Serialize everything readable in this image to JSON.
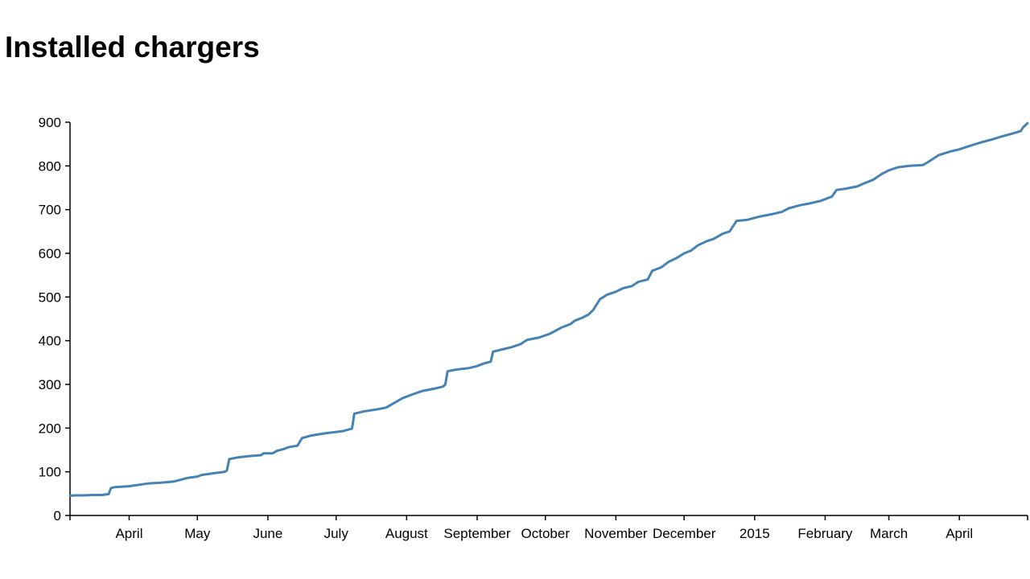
{
  "page_title": "Installed chargers",
  "chart_data": {
    "type": "line",
    "title": "Installed chargers",
    "xlabel": "",
    "ylabel": "",
    "ylim": [
      0,
      900
    ],
    "yticks": [
      0,
      100,
      200,
      300,
      400,
      500,
      600,
      700,
      800,
      900
    ],
    "xlim": [
      "2014-03-06",
      "2015-05-01"
    ],
    "xticks": [
      {
        "date": "2014-04-01",
        "label": "April"
      },
      {
        "date": "2014-05-01",
        "label": "May"
      },
      {
        "date": "2014-06-01",
        "label": "June"
      },
      {
        "date": "2014-07-01",
        "label": "July"
      },
      {
        "date": "2014-08-01",
        "label": "August"
      },
      {
        "date": "2014-09-01",
        "label": "September"
      },
      {
        "date": "2014-10-01",
        "label": "October"
      },
      {
        "date": "2014-11-01",
        "label": "November"
      },
      {
        "date": "2014-12-01",
        "label": "December"
      },
      {
        "date": "2015-01-01",
        "label": "2015"
      },
      {
        "date": "2015-02-01",
        "label": "February"
      },
      {
        "date": "2015-03-01",
        "label": "March"
      },
      {
        "date": "2015-04-01",
        "label": "April"
      }
    ],
    "grid": false,
    "legend": "none",
    "line_color": "#4682b4",
    "series": [
      {
        "points": [
          [
            "2014-03-06",
            45
          ],
          [
            "2014-03-08",
            46
          ],
          [
            "2014-03-12",
            46
          ],
          [
            "2014-03-16",
            47
          ],
          [
            "2014-03-20",
            47
          ],
          [
            "2014-03-23",
            49
          ],
          [
            "2014-03-24",
            63
          ],
          [
            "2014-03-26",
            65
          ],
          [
            "2014-04-01",
            67
          ],
          [
            "2014-04-05",
            70
          ],
          [
            "2014-04-09",
            73
          ],
          [
            "2014-04-15",
            75
          ],
          [
            "2014-04-21",
            78
          ],
          [
            "2014-04-26",
            85
          ],
          [
            "2014-04-28",
            87
          ],
          [
            "2014-05-01",
            89
          ],
          [
            "2014-05-03",
            93
          ],
          [
            "2014-05-06",
            95
          ],
          [
            "2014-05-10",
            98
          ],
          [
            "2014-05-13",
            100
          ],
          [
            "2014-05-14",
            103
          ],
          [
            "2014-05-15",
            129
          ],
          [
            "2014-05-19",
            133
          ],
          [
            "2014-05-24",
            136
          ],
          [
            "2014-05-29",
            138
          ],
          [
            "2014-05-30",
            142
          ],
          [
            "2014-06-03",
            142
          ],
          [
            "2014-06-05",
            148
          ],
          [
            "2014-06-08",
            152
          ],
          [
            "2014-06-10",
            156
          ],
          [
            "2014-06-14",
            160
          ],
          [
            "2014-06-16",
            177
          ],
          [
            "2014-06-20",
            183
          ],
          [
            "2014-06-26",
            188
          ],
          [
            "2014-07-04",
            193
          ],
          [
            "2014-07-08",
            199
          ],
          [
            "2014-07-09",
            233
          ],
          [
            "2014-07-13",
            238
          ],
          [
            "2014-07-19",
            243
          ],
          [
            "2014-07-23",
            247
          ],
          [
            "2014-07-30",
            268
          ],
          [
            "2014-08-03",
            276
          ],
          [
            "2014-08-08",
            285
          ],
          [
            "2014-08-13",
            290
          ],
          [
            "2014-08-17",
            295
          ],
          [
            "2014-08-18",
            300
          ],
          [
            "2014-08-19",
            330
          ],
          [
            "2014-08-23",
            334
          ],
          [
            "2014-08-28",
            337
          ],
          [
            "2014-09-01",
            342
          ],
          [
            "2014-09-04",
            348
          ],
          [
            "2014-09-07",
            352
          ],
          [
            "2014-09-08",
            375
          ],
          [
            "2014-09-12",
            380
          ],
          [
            "2014-09-16",
            385
          ],
          [
            "2014-09-20",
            392
          ],
          [
            "2014-09-23",
            402
          ],
          [
            "2014-09-28",
            407
          ],
          [
            "2014-10-03",
            416
          ],
          [
            "2014-10-08",
            430
          ],
          [
            "2014-10-12",
            438
          ],
          [
            "2014-10-14",
            446
          ],
          [
            "2014-10-17",
            452
          ],
          [
            "2014-10-20",
            460
          ],
          [
            "2014-10-22",
            470
          ],
          [
            "2014-10-25",
            495
          ],
          [
            "2014-10-28",
            505
          ],
          [
            "2014-11-01",
            512
          ],
          [
            "2014-11-04",
            520
          ],
          [
            "2014-11-08",
            525
          ],
          [
            "2014-11-11",
            535
          ],
          [
            "2014-11-15",
            540
          ],
          [
            "2014-11-17",
            560
          ],
          [
            "2014-11-21",
            568
          ],
          [
            "2014-11-24",
            580
          ],
          [
            "2014-11-28",
            590
          ],
          [
            "2014-12-01",
            600
          ],
          [
            "2014-12-04",
            606
          ],
          [
            "2014-12-07",
            618
          ],
          [
            "2014-12-11",
            628
          ],
          [
            "2014-12-14",
            633
          ],
          [
            "2014-12-18",
            645
          ],
          [
            "2014-12-21",
            650
          ],
          [
            "2014-12-24",
            674
          ],
          [
            "2014-12-29",
            677
          ],
          [
            "2015-01-03",
            684
          ],
          [
            "2015-01-09",
            690
          ],
          [
            "2015-01-13",
            695
          ],
          [
            "2015-01-16",
            703
          ],
          [
            "2015-01-21",
            710
          ],
          [
            "2015-01-25",
            714
          ],
          [
            "2015-01-30",
            720
          ],
          [
            "2015-02-04",
            730
          ],
          [
            "2015-02-06",
            745
          ],
          [
            "2015-02-10",
            748
          ],
          [
            "2015-02-15",
            753
          ],
          [
            "2015-02-18",
            760
          ],
          [
            "2015-02-22",
            768
          ],
          [
            "2015-02-26",
            782
          ],
          [
            "2015-03-01",
            790
          ],
          [
            "2015-03-05",
            797
          ],
          [
            "2015-03-10",
            800
          ],
          [
            "2015-03-16",
            802
          ],
          [
            "2015-03-18",
            808
          ],
          [
            "2015-03-23",
            825
          ],
          [
            "2015-03-28",
            833
          ],
          [
            "2015-04-01",
            838
          ],
          [
            "2015-04-05",
            845
          ],
          [
            "2015-04-10",
            853
          ],
          [
            "2015-04-15",
            860
          ],
          [
            "2015-04-20",
            868
          ],
          [
            "2015-04-25",
            875
          ],
          [
            "2015-04-28",
            880
          ],
          [
            "2015-04-29",
            888
          ],
          [
            "2015-05-01",
            898
          ]
        ]
      }
    ]
  }
}
